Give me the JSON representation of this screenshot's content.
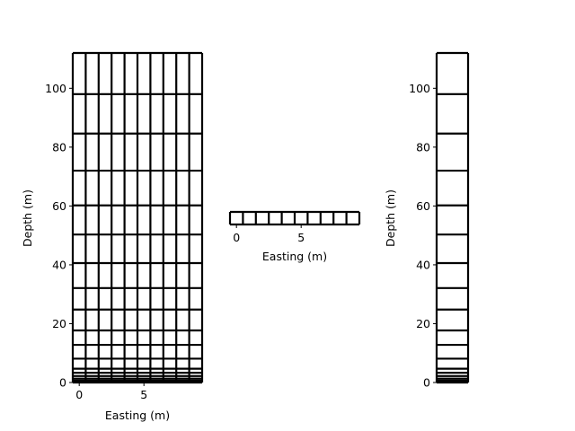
{
  "chart_data": [
    {
      "type": "heatmap",
      "description_role": "2D tensor mesh (depth vs easting)",
      "xlabel": "Easting (m)",
      "ylabel": "Depth (m)",
      "xlim": [
        -0.5,
        9.5
      ],
      "ylim": [
        0,
        112
      ],
      "x_ticks": [
        0,
        5
      ],
      "y_ticks": [
        0,
        20,
        40,
        60,
        80,
        100
      ],
      "x_nodes": [
        -0.5,
        0.5,
        1.5,
        2.5,
        3.5,
        4.5,
        5.5,
        6.5,
        7.5,
        8.5,
        9.5
      ],
      "y_nodes": [
        0,
        0.6,
        1.3,
        2.2,
        3.3,
        4.7,
        8.1,
        12.8,
        17.7,
        24.8,
        32.1,
        40.6,
        50.3,
        60.2,
        72.0,
        84.6,
        98.0,
        112
      ]
    },
    {
      "type": "heatmap",
      "description_role": "1D horizontal mesh",
      "xlabel": "Easting (m)",
      "ylabel": "",
      "xlim": [
        -0.5,
        9.5
      ],
      "x_ticks": [
        0,
        5
      ],
      "x_nodes": [
        -0.5,
        0.5,
        1.5,
        2.5,
        3.5,
        4.5,
        5.5,
        6.5,
        7.5,
        8.5,
        9.5
      ]
    },
    {
      "type": "heatmap",
      "description_role": "1D vertical mesh (depth)",
      "xlabel": "",
      "ylabel": "Depth (m)",
      "ylim": [
        0,
        112
      ],
      "y_ticks": [
        0,
        20,
        40,
        60,
        80,
        100
      ],
      "y_nodes": [
        0,
        0.6,
        1.3,
        2.2,
        3.3,
        4.7,
        8.1,
        12.8,
        17.7,
        24.8,
        32.1,
        40.6,
        50.3,
        60.2,
        72.0,
        84.6,
        98.0,
        112
      ]
    }
  ]
}
